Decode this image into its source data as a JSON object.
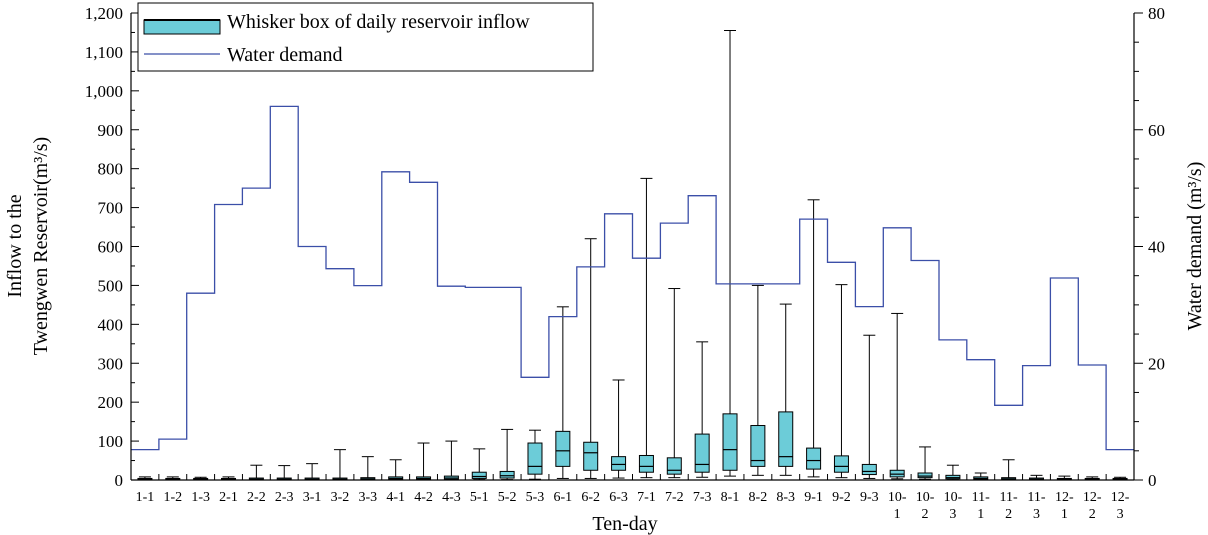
{
  "chart_data": {
    "type": "boxplot-with-step-line",
    "xlabel": "Ten-day",
    "ylabel_left": [
      "Inflow to the",
      "Twengwen Reservoir(m³/s)"
    ],
    "ylabel_right": "Water demand (m³/s)",
    "ylim_left": [
      0,
      1200
    ],
    "ylim_right": [
      0,
      80
    ],
    "yticks_left": [
      "0",
      "100",
      "200",
      "300",
      "400",
      "500",
      "600",
      "700",
      "800",
      "900",
      "1,000",
      "1,100",
      "1,200"
    ],
    "yticks_right": [
      "0",
      "20",
      "40",
      "60",
      "80"
    ],
    "grid": false,
    "legend_position": "top-left",
    "legend": {
      "box_label": "Whisker box of daily reservoir inflow",
      "line_label": "Water demand"
    },
    "colors": {
      "box_fill": "#6cccd8",
      "demand_line": "#3b4fa8",
      "axis": "#000000"
    },
    "categories": [
      [
        "1-1"
      ],
      [
        "1-2"
      ],
      [
        "1-3"
      ],
      [
        "2-1"
      ],
      [
        "2-2"
      ],
      [
        "2-3"
      ],
      [
        "3-1"
      ],
      [
        "3-2"
      ],
      [
        "3-3"
      ],
      [
        "4-1"
      ],
      [
        "4-2"
      ],
      [
        "4-3"
      ],
      [
        "5-1"
      ],
      [
        "5-2"
      ],
      [
        "5-3"
      ],
      [
        "6-1"
      ],
      [
        "6-2"
      ],
      [
        "6-3"
      ],
      [
        "7-1"
      ],
      [
        "7-2"
      ],
      [
        "7-3"
      ],
      [
        "8-1"
      ],
      [
        "8-2"
      ],
      [
        "8-3"
      ],
      [
        "9-1"
      ],
      [
        "9-2"
      ],
      [
        "9-3"
      ],
      [
        "10-",
        "1"
      ],
      [
        "10-",
        "2"
      ],
      [
        "10-",
        "3"
      ],
      [
        "11-",
        "1"
      ],
      [
        "11-",
        "2"
      ],
      [
        "11-",
        "3"
      ],
      [
        "12-",
        "1"
      ],
      [
        "12-",
        "2"
      ],
      [
        "12-",
        "3"
      ]
    ],
    "box_stats": [
      {
        "min": 0,
        "q1": 1,
        "median": 2,
        "q3": 4,
        "max": 8
      },
      {
        "min": 0,
        "q1": 1,
        "median": 2,
        "q3": 4,
        "max": 8
      },
      {
        "min": 0,
        "q1": 1,
        "median": 2,
        "q3": 4,
        "max": 7
      },
      {
        "min": 0,
        "q1": 1,
        "median": 2,
        "q3": 4,
        "max": 8
      },
      {
        "min": 0,
        "q1": 1,
        "median": 2,
        "q3": 5,
        "max": 38
      },
      {
        "min": 0,
        "q1": 1,
        "median": 2,
        "q3": 5,
        "max": 37
      },
      {
        "min": 0,
        "q1": 1,
        "median": 2,
        "q3": 5,
        "max": 42
      },
      {
        "min": 0,
        "q1": 1,
        "median": 2,
        "q3": 5,
        "max": 78
      },
      {
        "min": 0,
        "q1": 1,
        "median": 3,
        "q3": 6,
        "max": 60
      },
      {
        "min": 0,
        "q1": 2,
        "median": 4,
        "q3": 8,
        "max": 52
      },
      {
        "min": 0,
        "q1": 2,
        "median": 4,
        "q3": 8,
        "max": 95
      },
      {
        "min": 0,
        "q1": 2,
        "median": 5,
        "q3": 10,
        "max": 100
      },
      {
        "min": 1,
        "q1": 4,
        "median": 9,
        "q3": 20,
        "max": 80
      },
      {
        "min": 1,
        "q1": 5,
        "median": 11,
        "q3": 22,
        "max": 130
      },
      {
        "min": 2,
        "q1": 15,
        "median": 35,
        "q3": 95,
        "max": 128
      },
      {
        "min": 4,
        "q1": 35,
        "median": 75,
        "q3": 125,
        "max": 445
      },
      {
        "min": 4,
        "q1": 25,
        "median": 70,
        "q3": 97,
        "max": 620
      },
      {
        "min": 5,
        "q1": 25,
        "median": 40,
        "q3": 60,
        "max": 257
      },
      {
        "min": 6,
        "q1": 20,
        "median": 35,
        "q3": 63,
        "max": 775
      },
      {
        "min": 6,
        "q1": 15,
        "median": 25,
        "q3": 57,
        "max": 492
      },
      {
        "min": 7,
        "q1": 20,
        "median": 40,
        "q3": 118,
        "max": 355
      },
      {
        "min": 10,
        "q1": 25,
        "median": 78,
        "q3": 170,
        "max": 1155
      },
      {
        "min": 12,
        "q1": 35,
        "median": 50,
        "q3": 140,
        "max": 500
      },
      {
        "min": 12,
        "q1": 35,
        "median": 60,
        "q3": 175,
        "max": 452
      },
      {
        "min": 8,
        "q1": 28,
        "median": 50,
        "q3": 82,
        "max": 720
      },
      {
        "min": 6,
        "q1": 20,
        "median": 35,
        "q3": 62,
        "max": 502
      },
      {
        "min": 4,
        "q1": 14,
        "median": 22,
        "q3": 40,
        "max": 372
      },
      {
        "min": 3,
        "q1": 8,
        "median": 15,
        "q3": 25,
        "max": 428
      },
      {
        "min": 2,
        "q1": 6,
        "median": 10,
        "q3": 18,
        "max": 85
      },
      {
        "min": 1,
        "q1": 3,
        "median": 6,
        "q3": 12,
        "max": 38
      },
      {
        "min": 1,
        "q1": 2,
        "median": 4,
        "q3": 8,
        "max": 18
      },
      {
        "min": 0,
        "q1": 1,
        "median": 3,
        "q3": 6,
        "max": 52
      },
      {
        "min": 0,
        "q1": 1,
        "median": 2,
        "q3": 5,
        "max": 12
      },
      {
        "min": 0,
        "q1": 1,
        "median": 2,
        "q3": 4,
        "max": 10
      },
      {
        "min": 0,
        "q1": 1,
        "median": 2,
        "q3": 4,
        "max": 8
      },
      {
        "min": 0,
        "q1": 1,
        "median": 2,
        "q3": 4,
        "max": 7
      }
    ],
    "water_demand": [
      5.2,
      7.0,
      32.0,
      47.2,
      50.0,
      64.0,
      40.0,
      36.2,
      33.3,
      52.8,
      51.0,
      33.2,
      33.0,
      33.0,
      17.6,
      28.0,
      36.5,
      45.6,
      38.0,
      44.0,
      48.7,
      33.6,
      33.6,
      33.6,
      44.7,
      37.3,
      29.7,
      43.2,
      37.6,
      24.0,
      20.6,
      12.8,
      19.6,
      34.6,
      19.7,
      5.2
    ]
  }
}
